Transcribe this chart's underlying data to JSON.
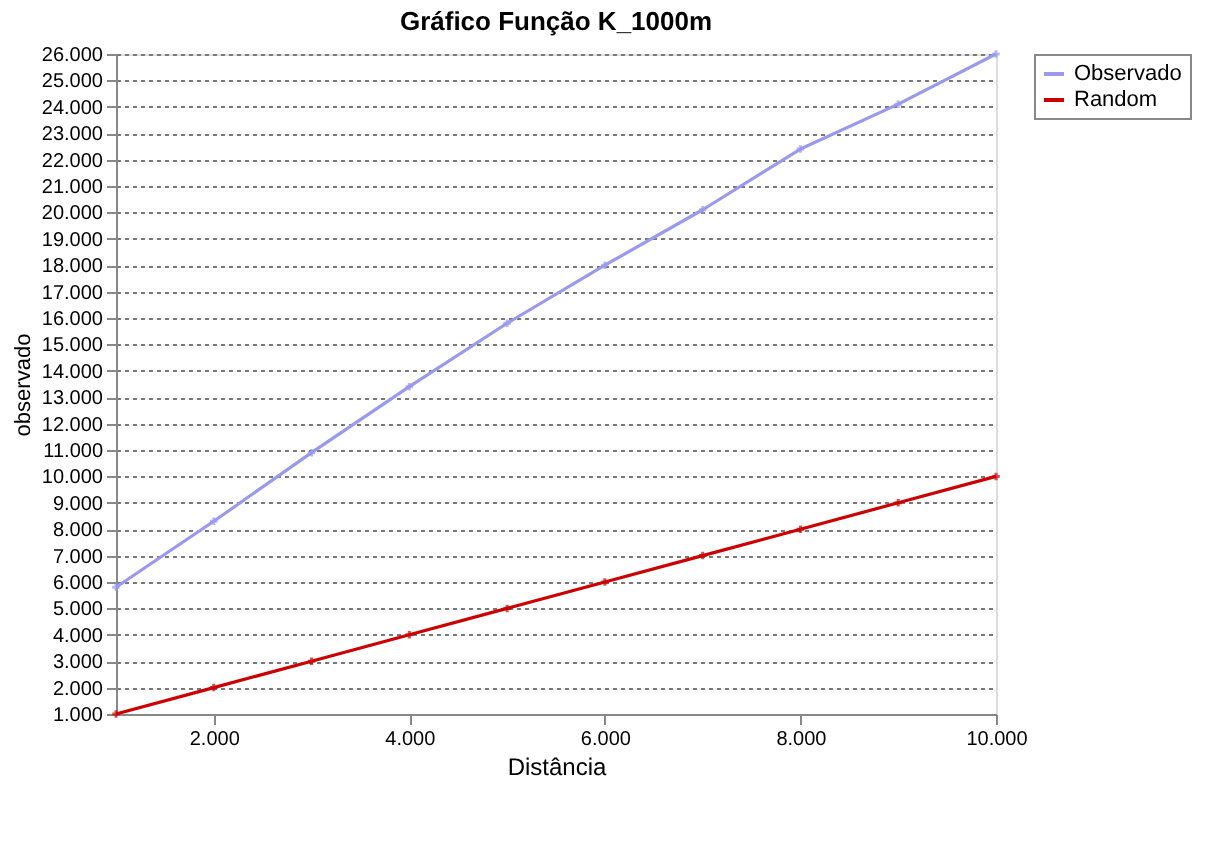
{
  "chart_data": {
    "type": "line",
    "title": "Gráfico Função K_1000m",
    "xlabel": "Distância",
    "ylabel": "observado",
    "x": [
      1000,
      2000,
      3000,
      4000,
      5000,
      6000,
      7000,
      8000,
      9000,
      10000
    ],
    "series": [
      {
        "name": "Observado",
        "color": "#9999ee",
        "values": [
          5800,
          8300,
          10900,
          13400,
          15800,
          18000,
          20100,
          22400,
          24100,
          26000
        ]
      },
      {
        "name": "Random",
        "color": "#cc0000",
        "values": [
          1000,
          2000,
          3000,
          4000,
          5000,
          6000,
          7000,
          8000,
          9000,
          10000
        ]
      }
    ],
    "xlim": [
      1000,
      10000
    ],
    "xticks": [
      {
        "value": 2000,
        "label": "2.000"
      },
      {
        "value": 4000,
        "label": "4.000"
      },
      {
        "value": 6000,
        "label": "6.000"
      },
      {
        "value": 8000,
        "label": "8.000"
      },
      {
        "value": 10000,
        "label": "10.000"
      }
    ],
    "ylim": [
      1000,
      26000
    ],
    "yticks": [
      {
        "value": 1000,
        "label": "1.000"
      },
      {
        "value": 2000,
        "label": "2.000"
      },
      {
        "value": 3000,
        "label": "3.000"
      },
      {
        "value": 4000,
        "label": "4.000"
      },
      {
        "value": 5000,
        "label": "5.000"
      },
      {
        "value": 6000,
        "label": "6.000"
      },
      {
        "value": 7000,
        "label": "7.000"
      },
      {
        "value": 8000,
        "label": "8.000"
      },
      {
        "value": 9000,
        "label": "9.000"
      },
      {
        "value": 10000,
        "label": "10.000"
      },
      {
        "value": 11000,
        "label": "11.000"
      },
      {
        "value": 12000,
        "label": "12.000"
      },
      {
        "value": 13000,
        "label": "13.000"
      },
      {
        "value": 14000,
        "label": "14.000"
      },
      {
        "value": 15000,
        "label": "15.000"
      },
      {
        "value": 16000,
        "label": "16.000"
      },
      {
        "value": 17000,
        "label": "17.000"
      },
      {
        "value": 18000,
        "label": "18.000"
      },
      {
        "value": 19000,
        "label": "19.000"
      },
      {
        "value": 20000,
        "label": "20.000"
      },
      {
        "value": 21000,
        "label": "21.000"
      },
      {
        "value": 22000,
        "label": "22.000"
      },
      {
        "value": 23000,
        "label": "23.000"
      },
      {
        "value": 24000,
        "label": "24.000"
      },
      {
        "value": 25000,
        "label": "25.000"
      },
      {
        "value": 26000,
        "label": "26.000"
      }
    ],
    "grid": "y",
    "legend": "top right",
    "marker": "cross",
    "line_style": "solid"
  }
}
